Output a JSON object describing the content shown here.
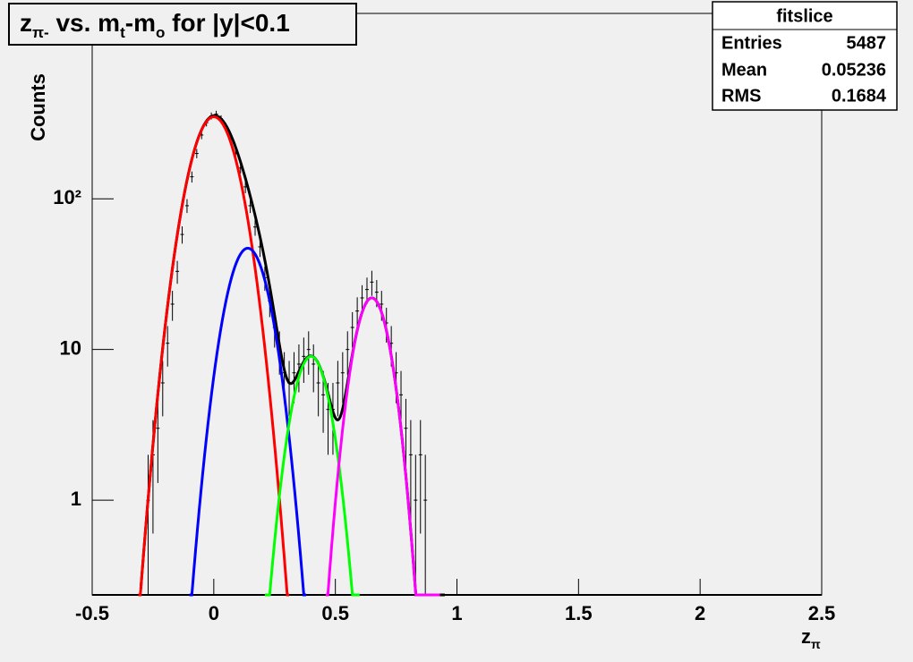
{
  "chart_data": {
    "type": "histogram-fit",
    "title_parts": [
      "z",
      "π-",
      " vs. m",
      "t",
      "-m",
      "o",
      " for |y|<0.1"
    ],
    "x_label_parts": [
      "z",
      "π"
    ],
    "y_label": "Counts",
    "log_y": true,
    "xlim": [
      -0.5,
      2.5
    ],
    "xticks": [
      -0.5,
      0,
      0.5,
      1,
      1.5,
      2,
      2.5
    ],
    "ylim": [
      0.235,
      1700
    ],
    "yticks": [
      1,
      10,
      {
        "value": 100,
        "label": "10²"
      }
    ],
    "stats": {
      "title": "fitslice",
      "rows": [
        [
          "Entries",
          "5487"
        ],
        [
          "Mean",
          "0.05236"
        ],
        [
          "RMS",
          "0.1684"
        ]
      ]
    },
    "points": {
      "color": "#000000",
      "x": [
        -0.27,
        -0.25,
        -0.23,
        -0.21,
        -0.19,
        -0.17,
        -0.15,
        -0.13,
        -0.11,
        -0.09,
        -0.07,
        -0.05,
        -0.03,
        -0.01,
        0.01,
        0.03,
        0.05,
        0.07,
        0.09,
        0.11,
        0.13,
        0.15,
        0.17,
        0.19,
        0.21,
        0.23,
        0.25,
        0.27,
        0.29,
        0.31,
        0.33,
        0.35,
        0.37,
        0.39,
        0.41,
        0.43,
        0.45,
        0.47,
        0.49,
        0.51,
        0.53,
        0.55,
        0.57,
        0.59,
        0.61,
        0.63,
        0.65,
        0.67,
        0.69,
        0.71,
        0.73,
        0.75,
        0.77,
        0.79,
        0.81,
        0.83,
        0.85,
        0.87
      ],
      "values": [
        1,
        2,
        3,
        6,
        11,
        20,
        33,
        58,
        90,
        140,
        200,
        265,
        320,
        355,
        365,
        340,
        300,
        255,
        200,
        160,
        120,
        90,
        65,
        48,
        30,
        21,
        14,
        10,
        7,
        6,
        7,
        8,
        9,
        10,
        8,
        6,
        5,
        4,
        4,
        6,
        7,
        10,
        14,
        18,
        22,
        25,
        28,
        24,
        20,
        15,
        11,
        7,
        5,
        3,
        2,
        1,
        2,
        1
      ],
      "errors": [
        1,
        1.4,
        1.7,
        2.4,
        3.3,
        4.5,
        5.7,
        7.6,
        9.5,
        11.8,
        14.1,
        16.3,
        17.9,
        18.8,
        19.1,
        18.4,
        17.3,
        16,
        14.1,
        12.6,
        11,
        9.5,
        8.1,
        6.9,
        5.5,
        4.6,
        3.7,
        3.2,
        2.6,
        2.4,
        2.6,
        2.8,
        3,
        3.2,
        2.8,
        2.4,
        2.2,
        2,
        2,
        2.4,
        2.6,
        3.2,
        3.7,
        4.2,
        4.7,
        5,
        5.3,
        4.9,
        4.5,
        3.9,
        3.3,
        2.6,
        2.2,
        1.7,
        1.4,
        1,
        1.4,
        1
      ]
    },
    "fit_total": {
      "color": "#000000",
      "xrange": [
        -0.3,
        0.95
      ]
    },
    "fits": [
      {
        "color": "#ff0000",
        "amplitude": 350,
        "mean": 0,
        "sigma": 0.079,
        "xrange": [
          -0.31,
          0.31
        ]
      },
      {
        "color": "#0000ff",
        "amplitude": 47,
        "mean": 0.14,
        "sigma": 0.0707,
        "xrange": [
          -0.1,
          0.38
        ]
      },
      {
        "color": "#00ff00",
        "amplitude": 9,
        "mean": 0.4,
        "sigma": 0.063,
        "xrange": [
          0.21,
          0.6
        ]
      },
      {
        "color": "#ff00ff",
        "amplitude": 22,
        "mean": 0.65,
        "sigma": 0.06,
        "xrange": [
          0.46,
          0.93
        ]
      }
    ]
  }
}
